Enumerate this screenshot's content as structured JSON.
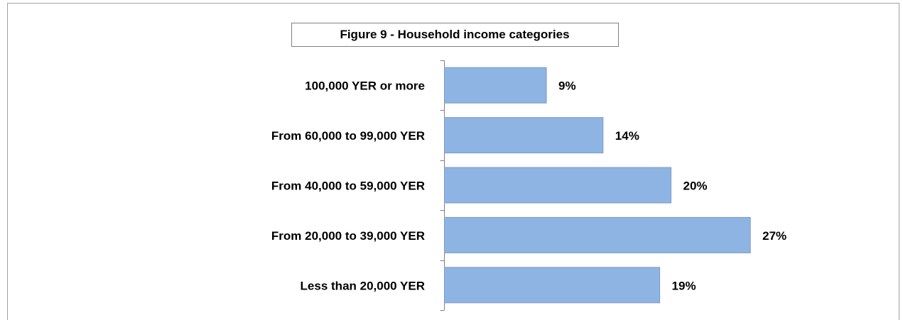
{
  "chart_data": {
    "type": "barh",
    "title": "Figure 9 - Household income categories",
    "categories": [
      "100,000 YER or more",
      "From 60,000 to 99,000 YER",
      "From 40,000 to 59,000 YER",
      "From 20,000 to 39,000 YER",
      "Less than 20,000 YER"
    ],
    "values": [
      9,
      14,
      20,
      27,
      19
    ],
    "value_labels": [
      "9%",
      "14%",
      "20%",
      "27%",
      "19%"
    ],
    "color": "#8eb4e3"
  }
}
